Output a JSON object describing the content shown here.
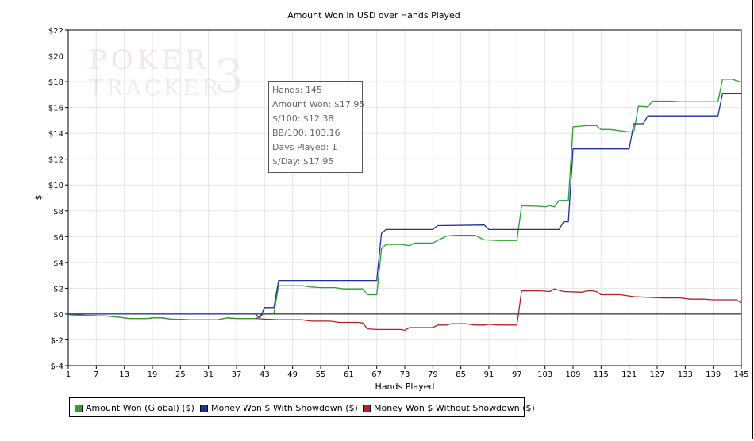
{
  "chart_data": {
    "type": "line",
    "title": "Amount Won in USD over Hands Played",
    "xlabel": "Hands Played",
    "ylabel": "$",
    "xlim": [
      1,
      145
    ],
    "ylim": [
      -4,
      22
    ],
    "x_ticks": [
      1,
      7,
      13,
      19,
      25,
      31,
      37,
      43,
      49,
      55,
      61,
      67,
      73,
      79,
      85,
      91,
      97,
      103,
      109,
      115,
      121,
      127,
      133,
      139,
      145
    ],
    "y_ticks": [
      -4,
      -2,
      0,
      2,
      4,
      6,
      8,
      10,
      12,
      14,
      16,
      18,
      20,
      22
    ],
    "y_tick_labels": [
      "$-4",
      "$-2",
      "$0",
      "$2",
      "$4",
      "$6",
      "$8",
      "$10",
      "$12",
      "$14",
      "$16",
      "$18",
      "$20",
      "$22"
    ],
    "grid": true,
    "legend_position": "bottom",
    "series": [
      {
        "name": "Amount Won (Global) ($)",
        "color": "#2ca02c",
        "points": [
          [
            1,
            -0.05
          ],
          [
            5,
            -0.1
          ],
          [
            9,
            -0.15
          ],
          [
            12,
            -0.25
          ],
          [
            14,
            -0.35
          ],
          [
            18,
            -0.35
          ],
          [
            19,
            -0.3
          ],
          [
            21,
            -0.3
          ],
          [
            23,
            -0.4
          ],
          [
            27,
            -0.45
          ],
          [
            33,
            -0.45
          ],
          [
            35,
            -0.3
          ],
          [
            37,
            -0.35
          ],
          [
            39,
            -0.35
          ],
          [
            41,
            -0.35
          ],
          [
            42,
            -0.2
          ],
          [
            43,
            0.05
          ],
          [
            45,
            0.05
          ],
          [
            46,
            2.2
          ],
          [
            51,
            2.2
          ],
          [
            53,
            2.1
          ],
          [
            55,
            2.05
          ],
          [
            58,
            2.05
          ],
          [
            60,
            1.95
          ],
          [
            62,
            1.95
          ],
          [
            64,
            1.95
          ],
          [
            65,
            1.5
          ],
          [
            66,
            1.5
          ],
          [
            67,
            1.5
          ],
          [
            68,
            5.05
          ],
          [
            69,
            5.4
          ],
          [
            72,
            5.4
          ],
          [
            74,
            5.3
          ],
          [
            75,
            5.5
          ],
          [
            79,
            5.5
          ],
          [
            80,
            5.7
          ],
          [
            82,
            6.05
          ],
          [
            84,
            6.1
          ],
          [
            88,
            6.1
          ],
          [
            90,
            5.75
          ],
          [
            93,
            5.7
          ],
          [
            96,
            5.7
          ],
          [
            97,
            5.7
          ],
          [
            98,
            8.4
          ],
          [
            102,
            8.35
          ],
          [
            103,
            8.3
          ],
          [
            104,
            8.4
          ],
          [
            105,
            8.3
          ],
          [
            106,
            8.8
          ],
          [
            107,
            8.8
          ],
          [
            108,
            8.8
          ],
          [
            109,
            14.5
          ],
          [
            112,
            14.6
          ],
          [
            114,
            14.6
          ],
          [
            115,
            14.3
          ],
          [
            117,
            14.3
          ],
          [
            121,
            14.1
          ],
          [
            122,
            14.1
          ],
          [
            123,
            16.1
          ],
          [
            125,
            16.05
          ],
          [
            126,
            16.5
          ],
          [
            130,
            16.5
          ],
          [
            132,
            16.45
          ],
          [
            134,
            16.45
          ],
          [
            140,
            16.45
          ],
          [
            141,
            18.2
          ],
          [
            143,
            18.2
          ],
          [
            145,
            17.95
          ]
        ]
      },
      {
        "name": "Money Won $ With Showdown ($)",
        "color": "#1f2fa0",
        "points": [
          [
            1,
            0
          ],
          [
            41,
            0
          ],
          [
            42,
            -0.3
          ],
          [
            43,
            0.5
          ],
          [
            45,
            0.5
          ],
          [
            46,
            2.6
          ],
          [
            66,
            2.6
          ],
          [
            67,
            2.6
          ],
          [
            68,
            6.25
          ],
          [
            69,
            6.55
          ],
          [
            79,
            6.55
          ],
          [
            80,
            6.85
          ],
          [
            90,
            6.9
          ],
          [
            91,
            6.55
          ],
          [
            97,
            6.55
          ],
          [
            106,
            6.55
          ],
          [
            107,
            7.15
          ],
          [
            108,
            7.15
          ],
          [
            109,
            12.8
          ],
          [
            121,
            12.8
          ],
          [
            122,
            14.75
          ],
          [
            124,
            14.75
          ],
          [
            125,
            15.35
          ],
          [
            140,
            15.35
          ],
          [
            141,
            17.1
          ],
          [
            145,
            17.1
          ]
        ]
      },
      {
        "name": "Money Won $ Without Showdown ($)",
        "color": "#b22222",
        "points": [
          [
            1,
            -0.05
          ],
          [
            5,
            -0.1
          ],
          [
            9,
            -0.15
          ],
          [
            12,
            -0.25
          ],
          [
            14,
            -0.35
          ],
          [
            18,
            -0.35
          ],
          [
            19,
            -0.3
          ],
          [
            21,
            -0.3
          ],
          [
            23,
            -0.4
          ],
          [
            27,
            -0.45
          ],
          [
            33,
            -0.45
          ],
          [
            35,
            -0.3
          ],
          [
            37,
            -0.35
          ],
          [
            41,
            -0.35
          ],
          [
            43,
            -0.4
          ],
          [
            46,
            -0.45
          ],
          [
            51,
            -0.45
          ],
          [
            53,
            -0.55
          ],
          [
            57,
            -0.55
          ],
          [
            59,
            -0.65
          ],
          [
            63,
            -0.65
          ],
          [
            64,
            -0.7
          ],
          [
            65,
            -1.15
          ],
          [
            67,
            -1.2
          ],
          [
            72,
            -1.2
          ],
          [
            73,
            -1.25
          ],
          [
            74,
            -1.05
          ],
          [
            77,
            -1.05
          ],
          [
            79,
            -1.05
          ],
          [
            80,
            -0.85
          ],
          [
            82,
            -0.85
          ],
          [
            83,
            -0.75
          ],
          [
            86,
            -0.75
          ],
          [
            88,
            -0.85
          ],
          [
            90,
            -0.85
          ],
          [
            91,
            -0.8
          ],
          [
            93,
            -0.85
          ],
          [
            96,
            -0.85
          ],
          [
            97,
            -0.85
          ],
          [
            98,
            1.8
          ],
          [
            102,
            1.8
          ],
          [
            104,
            1.75
          ],
          [
            105,
            1.95
          ],
          [
            107,
            1.75
          ],
          [
            111,
            1.7
          ],
          [
            112,
            1.8
          ],
          [
            113,
            1.8
          ],
          [
            114,
            1.75
          ],
          [
            115,
            1.5
          ],
          [
            119,
            1.5
          ],
          [
            121,
            1.4
          ],
          [
            122,
            1.35
          ],
          [
            125,
            1.3
          ],
          [
            128,
            1.25
          ],
          [
            132,
            1.25
          ],
          [
            134,
            1.15
          ],
          [
            137,
            1.15
          ],
          [
            139,
            1.1
          ],
          [
            144,
            1.1
          ],
          [
            145,
            0.85
          ]
        ]
      }
    ]
  },
  "info_box": {
    "lines": [
      "Hands: 145",
      "Amount Won: $17.95",
      "$/100: $12.38",
      "BB/100: 103.16",
      "Days Played: 1",
      "$/Day: $17.95"
    ]
  },
  "watermark": {
    "word1": "POKER",
    "word2": "TRACKER",
    "numeral": "3"
  }
}
